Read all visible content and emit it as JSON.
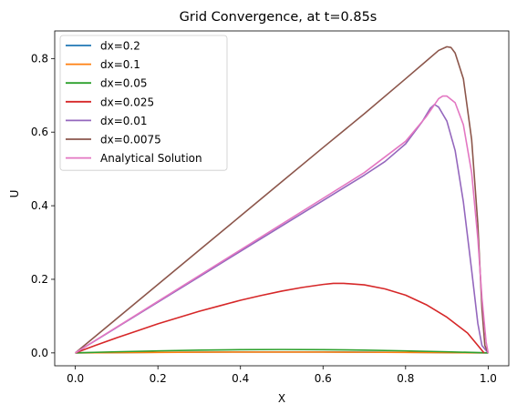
{
  "chart_data": {
    "type": "line",
    "title": "Grid Convergence, at t=0.85s",
    "xlabel": "X",
    "ylabel": "U",
    "xlim": [
      -0.05,
      1.05
    ],
    "ylim": [
      -0.035,
      0.875
    ],
    "xticks": [
      0.0,
      0.2,
      0.4,
      0.6,
      0.8,
      1.0
    ],
    "xtick_labels": [
      "0.0",
      "0.2",
      "0.4",
      "0.6",
      "0.8",
      "1.0"
    ],
    "yticks": [
      0.0,
      0.2,
      0.4,
      0.6,
      0.8
    ],
    "ytick_labels": [
      "0.0",
      "0.2",
      "0.4",
      "0.6",
      "0.8"
    ],
    "grid": false,
    "legend_position": "top-left",
    "series": [
      {
        "name": "dx=0.2",
        "color": "#1f77b4",
        "points": [
          [
            0,
            0
          ],
          [
            0.2,
            0.0015
          ],
          [
            0.4,
            0.0025
          ],
          [
            0.6,
            0.0025
          ],
          [
            0.8,
            0.0015
          ],
          [
            1.0,
            0
          ]
        ]
      },
      {
        "name": "dx=0.1",
        "color": "#ff7f0e",
        "points": [
          [
            0,
            0
          ],
          [
            0.1,
            0.0008
          ],
          [
            0.2,
            0.0014
          ],
          [
            0.3,
            0.0019
          ],
          [
            0.4,
            0.0022
          ],
          [
            0.5,
            0.0023
          ],
          [
            0.6,
            0.0022
          ],
          [
            0.7,
            0.0018
          ],
          [
            0.8,
            0.0013
          ],
          [
            0.9,
            0.0007
          ],
          [
            1.0,
            0
          ]
        ]
      },
      {
        "name": "dx=0.05",
        "color": "#2ca02c",
        "points": [
          [
            0,
            0
          ],
          [
            0.1,
            0.003
          ],
          [
            0.2,
            0.0055
          ],
          [
            0.3,
            0.0075
          ],
          [
            0.4,
            0.0088
          ],
          [
            0.5,
            0.0092
          ],
          [
            0.6,
            0.0088
          ],
          [
            0.7,
            0.0075
          ],
          [
            0.8,
            0.0055
          ],
          [
            0.9,
            0.003
          ],
          [
            1.0,
            0
          ]
        ]
      },
      {
        "name": "dx=0.025",
        "color": "#d62728",
        "points": [
          [
            0,
            0
          ],
          [
            0.05,
            0.021
          ],
          [
            0.1,
            0.041
          ],
          [
            0.15,
            0.06
          ],
          [
            0.2,
            0.079
          ],
          [
            0.25,
            0.096
          ],
          [
            0.3,
            0.113
          ],
          [
            0.35,
            0.128
          ],
          [
            0.4,
            0.143
          ],
          [
            0.45,
            0.156
          ],
          [
            0.5,
            0.168
          ],
          [
            0.55,
            0.178
          ],
          [
            0.6,
            0.186
          ],
          [
            0.625,
            0.189
          ],
          [
            0.65,
            0.189
          ],
          [
            0.7,
            0.185
          ],
          [
            0.75,
            0.174
          ],
          [
            0.8,
            0.157
          ],
          [
            0.85,
            0.131
          ],
          [
            0.9,
            0.097
          ],
          [
            0.95,
            0.054
          ],
          [
            0.99,
            0.0
          ]
        ]
      },
      {
        "name": "dx=0.01",
        "color": "#9467bd",
        "points": [
          [
            0,
            0
          ],
          [
            0.1,
            0.069
          ],
          [
            0.2,
            0.138
          ],
          [
            0.3,
            0.207
          ],
          [
            0.4,
            0.276
          ],
          [
            0.5,
            0.345
          ],
          [
            0.6,
            0.414
          ],
          [
            0.7,
            0.483
          ],
          [
            0.75,
            0.52
          ],
          [
            0.8,
            0.568
          ],
          [
            0.84,
            0.628
          ],
          [
            0.86,
            0.665
          ],
          [
            0.87,
            0.675
          ],
          [
            0.88,
            0.668
          ],
          [
            0.9,
            0.63
          ],
          [
            0.92,
            0.55
          ],
          [
            0.94,
            0.41
          ],
          [
            0.96,
            0.225
          ],
          [
            0.975,
            0.08
          ],
          [
            0.985,
            0.02
          ],
          [
            1.0,
            0
          ]
        ]
      },
      {
        "name": "dx=0.0075",
        "color": "#8c564b",
        "points": [
          [
            0,
            0
          ],
          [
            0.1,
            0.093
          ],
          [
            0.2,
            0.186
          ],
          [
            0.3,
            0.279
          ],
          [
            0.4,
            0.372
          ],
          [
            0.5,
            0.465
          ],
          [
            0.6,
            0.558
          ],
          [
            0.7,
            0.65
          ],
          [
            0.8,
            0.745
          ],
          [
            0.85,
            0.793
          ],
          [
            0.88,
            0.822
          ],
          [
            0.9,
            0.832
          ],
          [
            0.91,
            0.83
          ],
          [
            0.92,
            0.815
          ],
          [
            0.94,
            0.745
          ],
          [
            0.96,
            0.58
          ],
          [
            0.975,
            0.35
          ],
          [
            0.985,
            0.12
          ],
          [
            0.992,
            0.02
          ],
          [
            1.0,
            0
          ]
        ]
      },
      {
        "name": "Analytical Solution",
        "color": "#e377c2",
        "points": [
          [
            0,
            0
          ],
          [
            0.1,
            0.07
          ],
          [
            0.2,
            0.14
          ],
          [
            0.3,
            0.21
          ],
          [
            0.4,
            0.28
          ],
          [
            0.5,
            0.35
          ],
          [
            0.6,
            0.42
          ],
          [
            0.7,
            0.49
          ],
          [
            0.8,
            0.575
          ],
          [
            0.85,
            0.642
          ],
          [
            0.88,
            0.691
          ],
          [
            0.89,
            0.698
          ],
          [
            0.9,
            0.698
          ],
          [
            0.92,
            0.68
          ],
          [
            0.94,
            0.62
          ],
          [
            0.96,
            0.49
          ],
          [
            0.975,
            0.31
          ],
          [
            0.985,
            0.15
          ],
          [
            0.995,
            0.03
          ],
          [
            1.0,
            0
          ]
        ]
      }
    ]
  }
}
